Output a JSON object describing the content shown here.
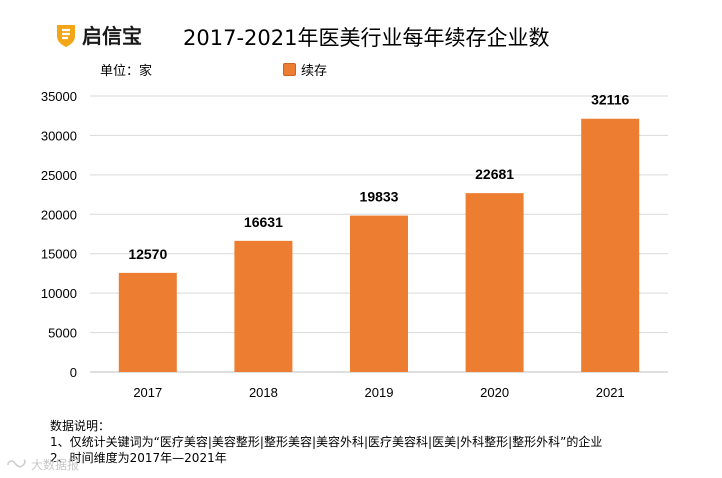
{
  "brand": {
    "name": "启信宝"
  },
  "header": {
    "title": "2017-2021年医美行业每年续存企业数"
  },
  "unit_label": "单位：家",
  "chart_data": {
    "type": "bar",
    "title": "2017-2021年医美行业每年续存企业数",
    "categories": [
      "2017",
      "2018",
      "2019",
      "2020",
      "2021"
    ],
    "series": [
      {
        "name": "续存",
        "values": [
          12570,
          16631,
          19833,
          22681,
          32116
        ],
        "color": "#ED7D31"
      }
    ],
    "ylim": [
      0,
      35000
    ],
    "yticks": [
      0,
      5000,
      10000,
      15000,
      20000,
      25000,
      30000,
      35000
    ],
    "xlabel": "",
    "ylabel": "单位：家",
    "grid": true,
    "legend_position": "top"
  },
  "notes": {
    "heading": "数据说明：",
    "line1": "1、仅统计关键词为“医疗美容|美容整形|整形美容|美容外科|医疗美容科|医美|外科整形|整形外科”的企业",
    "line2": "2、时间维度为2017年—2021年"
  },
  "watermark": "大数据报"
}
